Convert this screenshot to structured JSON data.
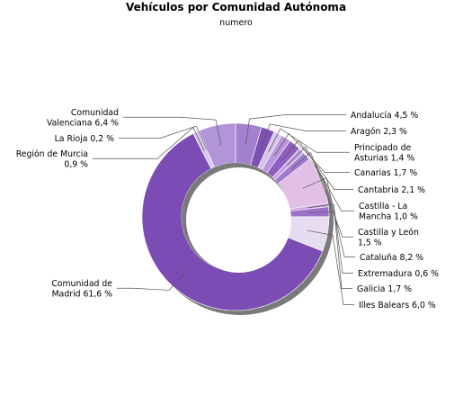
{
  "chart_data": {
    "type": "pie",
    "variant": "donut",
    "title": "Vehículos por Comunidad Autónoma",
    "subtitle": "numero",
    "slices": [
      {
        "name": "Andalucía",
        "value": 4.5,
        "label": [
          "Andalucía 4,5 %"
        ],
        "color": "#a381cf"
      },
      {
        "name": "Aragón",
        "value": 2.3,
        "label": [
          "Aragón 2,3 %"
        ],
        "color": "#7e50b3"
      },
      {
        "name": "Principado de Asturias",
        "value": 1.4,
        "label": [
          "Principado de",
          "Asturias 1,4 %"
        ],
        "color": "#d6c6ea"
      },
      {
        "name": "Canarias",
        "value": 1.7,
        "label": [
          "Canarias 1,7 %"
        ],
        "color": "#b996dc"
      },
      {
        "name": "Cantabria",
        "value": 2.1,
        "label": [
          "Cantabria 2,1 %"
        ],
        "color": "#8e5fc0"
      },
      {
        "name": "Castilla - La Mancha",
        "value": 1.0,
        "label": [
          "Castilla - La",
          "Mancha 1,0 %"
        ],
        "color": "#c6a6e0"
      },
      {
        "name": "Castilla y León",
        "value": 1.5,
        "label": [
          "Castilla y León",
          "1,5 %"
        ],
        "color": "#a07acc"
      },
      {
        "name": "Cataluña",
        "value": 8.2,
        "label": [
          "Cataluña 8,2 %"
        ],
        "color": "#e2bfe4"
      },
      {
        "name": "Extremadura",
        "value": 0.6,
        "label": [
          "Extremadura 0,6 %"
        ],
        "color": "#c3a3df"
      },
      {
        "name": "Galicia",
        "value": 1.7,
        "label": [
          "Galicia 1,7 %"
        ],
        "color": "#9b73c9"
      },
      {
        "name": "Illes Balears",
        "value": 6.0,
        "label": [
          "Illes Balears 6,0 %"
        ],
        "color": "#e7ddf1"
      },
      {
        "name": "Comunidad de Madrid",
        "value": 61.6,
        "label": [
          "Comunidad de",
          "Madrid 61,6 %"
        ],
        "color": "#7b4cb3"
      },
      {
        "name": "Región de Murcia",
        "value": 0.9,
        "label": [
          "Región de Murcia",
          "0,9 %"
        ],
        "color": "#d8c7ec"
      },
      {
        "name": "La Rioja",
        "value": 0.2,
        "label": [
          "La Rioja 0,2 %"
        ],
        "color": "#6a3a9f"
      },
      {
        "name": "Comunidad Valenciana",
        "value": 6.4,
        "label": [
          "Comunidad",
          "Valenciana 6,4 %"
        ],
        "color": "#b294d8"
      }
    ]
  }
}
